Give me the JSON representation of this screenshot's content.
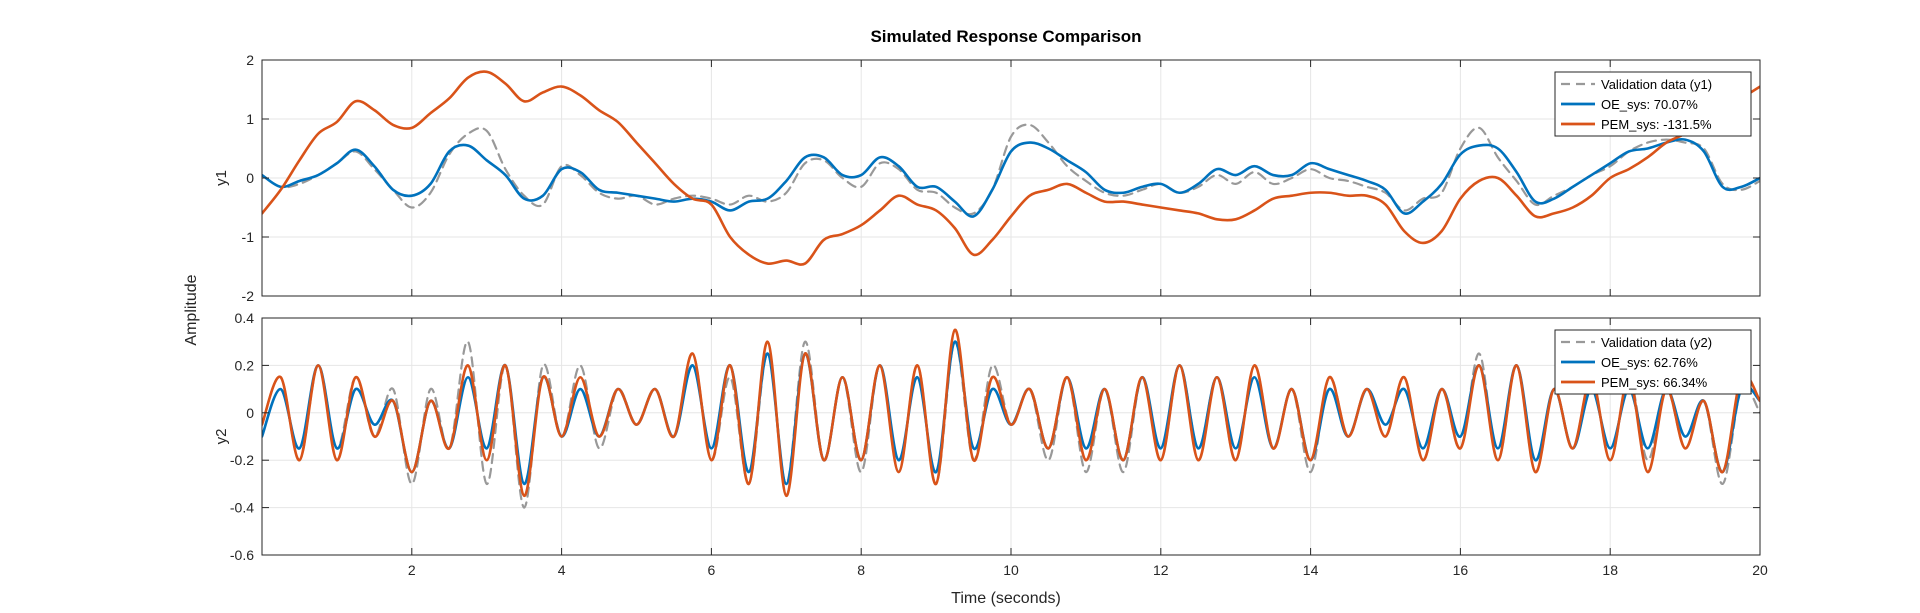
{
  "figure": {
    "title": "Simulated Response Comparison",
    "xlabel": "Time (seconds)",
    "ylabel": "Amplitude",
    "colors": {
      "validation": "#999999",
      "oe": "#0072BD",
      "pem": "#D95319",
      "grid": "#e6e6e6",
      "axes": "#262626"
    }
  },
  "chart_data": [
    {
      "type": "line",
      "ylabel": "y1",
      "xlim": [
        0,
        20
      ],
      "ylim": [
        -2,
        2
      ],
      "xticks": [
        2,
        4,
        6,
        8,
        10,
        12,
        14,
        16,
        18,
        20
      ],
      "yticks": [
        -2,
        -1,
        0,
        1,
        2
      ],
      "grid": true,
      "legend_position": "top-right",
      "legend": [
        "Validation data (y1)",
        "OE_sys: 70.07%",
        "PEM_sys: -131.5%"
      ],
      "x": [
        0,
        0.25,
        0.5,
        0.75,
        1,
        1.25,
        1.5,
        1.75,
        2,
        2.25,
        2.5,
        2.75,
        3,
        3.25,
        3.5,
        3.75,
        4,
        4.25,
        4.5,
        4.75,
        5,
        5.25,
        5.5,
        5.75,
        6,
        6.25,
        6.5,
        6.75,
        7,
        7.25,
        7.5,
        7.75,
        8,
        8.25,
        8.5,
        8.75,
        9,
        9.25,
        9.5,
        9.75,
        10,
        10.25,
        10.5,
        10.75,
        11,
        11.25,
        11.5,
        11.75,
        12,
        12.25,
        12.5,
        12.75,
        13,
        13.25,
        13.5,
        13.75,
        14,
        14.25,
        14.5,
        14.75,
        15,
        15.25,
        15.5,
        15.75,
        16,
        16.25,
        16.5,
        16.75,
        17,
        17.25,
        17.5,
        17.75,
        18,
        18.25,
        18.5,
        18.75,
        19,
        19.25,
        19.5,
        19.75,
        20
      ],
      "series": [
        {
          "name": "Validation data (y1)",
          "style": "dashed",
          "values": [
            0.05,
            -0.15,
            -0.1,
            0.05,
            0.25,
            0.45,
            0.15,
            -0.2,
            -0.5,
            -0.25,
            0.4,
            0.75,
            0.8,
            0.15,
            -0.3,
            -0.45,
            0.2,
            0.05,
            -0.25,
            -0.35,
            -0.3,
            -0.45,
            -0.35,
            -0.3,
            -0.35,
            -0.45,
            -0.3,
            -0.4,
            -0.25,
            0.25,
            0.3,
            0.0,
            -0.15,
            0.25,
            0.15,
            -0.2,
            -0.25,
            -0.5,
            -0.6,
            -0.2,
            0.7,
            0.9,
            0.6,
            0.2,
            -0.05,
            -0.25,
            -0.3,
            -0.2,
            -0.1,
            -0.25,
            -0.15,
            0.05,
            -0.1,
            0.1,
            -0.1,
            0.0,
            0.15,
            0.0,
            -0.05,
            -0.15,
            -0.25,
            -0.55,
            -0.35,
            -0.25,
            0.5,
            0.85,
            0.35,
            -0.05,
            -0.45,
            -0.3,
            -0.15,
            0.05,
            0.2,
            0.45,
            0.6,
            0.65,
            0.6,
            0.5,
            -0.1,
            -0.2,
            -0.05
          ]
        },
        {
          "name": "OE_sys: 70.07%",
          "style": "solid",
          "values": [
            0.05,
            -0.15,
            -0.05,
            0.05,
            0.25,
            0.48,
            0.2,
            -0.2,
            -0.3,
            -0.1,
            0.45,
            0.55,
            0.3,
            0.05,
            -0.35,
            -0.3,
            0.15,
            0.1,
            -0.2,
            -0.25,
            -0.3,
            -0.35,
            -0.4,
            -0.35,
            -0.4,
            -0.55,
            -0.4,
            -0.35,
            -0.05,
            0.35,
            0.35,
            0.05,
            0.05,
            0.35,
            0.2,
            -0.15,
            -0.15,
            -0.4,
            -0.65,
            -0.2,
            0.45,
            0.6,
            0.5,
            0.3,
            0.1,
            -0.2,
            -0.25,
            -0.15,
            -0.1,
            -0.25,
            -0.1,
            0.15,
            0.05,
            0.2,
            0.05,
            0.05,
            0.25,
            0.15,
            0.05,
            -0.05,
            -0.2,
            -0.6,
            -0.4,
            -0.1,
            0.4,
            0.55,
            0.5,
            0.1,
            -0.4,
            -0.35,
            -0.15,
            0.05,
            0.25,
            0.45,
            0.5,
            0.6,
            0.65,
            0.45,
            -0.15,
            -0.15,
            0.0
          ]
        },
        {
          "name": "PEM_sys: -131.5%",
          "style": "solid",
          "values": [
            -0.6,
            -0.2,
            0.3,
            0.75,
            0.95,
            1.3,
            1.15,
            0.9,
            0.85,
            1.1,
            1.35,
            1.7,
            1.8,
            1.6,
            1.3,
            1.45,
            1.55,
            1.4,
            1.15,
            0.95,
            0.6,
            0.25,
            -0.1,
            -0.35,
            -0.45,
            -1.0,
            -1.3,
            -1.45,
            -1.4,
            -1.45,
            -1.05,
            -0.95,
            -0.8,
            -0.55,
            -0.3,
            -0.45,
            -0.55,
            -0.85,
            -1.3,
            -1.05,
            -0.65,
            -0.3,
            -0.2,
            -0.1,
            -0.25,
            -0.4,
            -0.4,
            -0.45,
            -0.5,
            -0.55,
            -0.6,
            -0.7,
            -0.7,
            -0.55,
            -0.35,
            -0.3,
            -0.25,
            -0.25,
            -0.3,
            -0.3,
            -0.45,
            -0.9,
            -1.1,
            -0.9,
            -0.35,
            -0.05,
            0.0,
            -0.3,
            -0.65,
            -0.6,
            -0.5,
            -0.3,
            0.0,
            0.15,
            0.35,
            0.6,
            0.75,
            0.95,
            1.15,
            1.35,
            1.55
          ]
        }
      ]
    },
    {
      "type": "line",
      "ylabel": "y2",
      "xlim": [
        0,
        20
      ],
      "ylim": [
        -0.6,
        0.4
      ],
      "xticks": [
        2,
        4,
        6,
        8,
        10,
        12,
        14,
        16,
        18,
        20
      ],
      "yticks": [
        -0.6,
        -0.4,
        -0.2,
        0,
        0.2,
        0.4
      ],
      "grid": true,
      "legend_position": "top-right",
      "legend": [
        "Validation data (y2)",
        "OE_sys: 62.76%",
        "PEM_sys: 66.34%"
      ],
      "x": [
        0,
        0.25,
        0.5,
        0.75,
        1,
        1.25,
        1.5,
        1.75,
        2,
        2.25,
        2.5,
        2.75,
        3,
        3.25,
        3.5,
        3.75,
        4,
        4.25,
        4.5,
        4.75,
        5,
        5.25,
        5.5,
        5.75,
        6,
        6.25,
        6.5,
        6.75,
        7,
        7.25,
        7.5,
        7.75,
        8,
        8.25,
        8.5,
        8.75,
        9,
        9.25,
        9.5,
        9.75,
        10,
        10.25,
        10.5,
        10.75,
        11,
        11.25,
        11.5,
        11.75,
        12,
        12.25,
        12.5,
        12.75,
        13,
        13.25,
        13.5,
        13.75,
        14,
        14.25,
        14.5,
        14.75,
        15,
        15.25,
        15.5,
        15.75,
        16,
        16.25,
        16.5,
        16.75,
        17,
        17.25,
        17.5,
        17.75,
        18,
        18.25,
        18.5,
        18.75,
        19,
        19.25,
        19.5,
        19.75,
        20
      ],
      "series": [
        {
          "name": "Validation data (y2)",
          "style": "dashed",
          "values": [
            -0.05,
            0.15,
            -0.2,
            0.2,
            -0.15,
            0.15,
            -0.1,
            0.1,
            -0.3,
            0.1,
            -0.15,
            0.3,
            -0.3,
            0.2,
            -0.4,
            0.2,
            -0.1,
            0.2,
            -0.15,
            0.1,
            -0.05,
            0.1,
            -0.1,
            0.25,
            -0.2,
            0.15,
            -0.3,
            0.25,
            -0.3,
            0.3,
            -0.2,
            0.15,
            -0.25,
            0.2,
            -0.25,
            0.2,
            -0.3,
            0.3,
            -0.2,
            0.2,
            -0.05,
            0.1,
            -0.2,
            0.15,
            -0.25,
            0.1,
            -0.25,
            0.15,
            -0.2,
            0.2,
            -0.15,
            0.15,
            -0.2,
            0.2,
            -0.15,
            0.1,
            -0.25,
            0.15,
            -0.1,
            0.1,
            -0.1,
            0.15,
            -0.2,
            0.1,
            -0.15,
            0.25,
            -0.2,
            0.2,
            -0.25,
            0.1,
            -0.15,
            0.15,
            -0.2,
            0.15,
            -0.2,
            0.1,
            -0.15,
            0.05,
            -0.3,
            0.1,
            0.0
          ]
        },
        {
          "name": "OE_sys: 62.76%",
          "style": "solid",
          "values": [
            -0.1,
            0.1,
            -0.15,
            0.2,
            -0.15,
            0.1,
            -0.05,
            0.05,
            -0.25,
            0.05,
            -0.15,
            0.15,
            -0.15,
            0.2,
            -0.3,
            0.15,
            -0.1,
            0.1,
            -0.1,
            0.1,
            -0.05,
            0.1,
            -0.1,
            0.2,
            -0.15,
            0.2,
            -0.25,
            0.25,
            -0.3,
            0.25,
            -0.2,
            0.15,
            -0.2,
            0.2,
            -0.2,
            0.15,
            -0.25,
            0.3,
            -0.15,
            0.1,
            -0.05,
            0.1,
            -0.15,
            0.15,
            -0.15,
            0.1,
            -0.2,
            0.15,
            -0.15,
            0.2,
            -0.15,
            0.15,
            -0.15,
            0.15,
            -0.15,
            0.1,
            -0.2,
            0.1,
            -0.1,
            0.1,
            -0.05,
            0.1,
            -0.15,
            0.1,
            -0.1,
            0.2,
            -0.15,
            0.2,
            -0.2,
            0.1,
            -0.15,
            0.1,
            -0.15,
            0.1,
            -0.15,
            0.1,
            -0.1,
            0.05,
            -0.25,
            0.1,
            0.05
          ]
        },
        {
          "name": "PEM_sys: 66.34%",
          "style": "solid",
          "values": [
            -0.05,
            0.15,
            -0.2,
            0.2,
            -0.2,
            0.15,
            -0.1,
            0.05,
            -0.25,
            0.05,
            -0.15,
            0.2,
            -0.2,
            0.2,
            -0.35,
            0.15,
            -0.1,
            0.15,
            -0.1,
            0.1,
            -0.05,
            0.1,
            -0.1,
            0.25,
            -0.2,
            0.2,
            -0.3,
            0.3,
            -0.35,
            0.25,
            -0.2,
            0.15,
            -0.2,
            0.2,
            -0.25,
            0.2,
            -0.3,
            0.35,
            -0.2,
            0.15,
            -0.05,
            0.1,
            -0.15,
            0.15,
            -0.2,
            0.1,
            -0.2,
            0.15,
            -0.2,
            0.2,
            -0.2,
            0.15,
            -0.2,
            0.2,
            -0.15,
            0.1,
            -0.2,
            0.15,
            -0.1,
            0.1,
            -0.1,
            0.15,
            -0.2,
            0.1,
            -0.15,
            0.2,
            -0.2,
            0.2,
            -0.25,
            0.1,
            -0.15,
            0.15,
            -0.2,
            0.15,
            -0.25,
            0.1,
            -0.15,
            0.05,
            -0.25,
            0.15,
            0.05
          ]
        }
      ]
    }
  ]
}
